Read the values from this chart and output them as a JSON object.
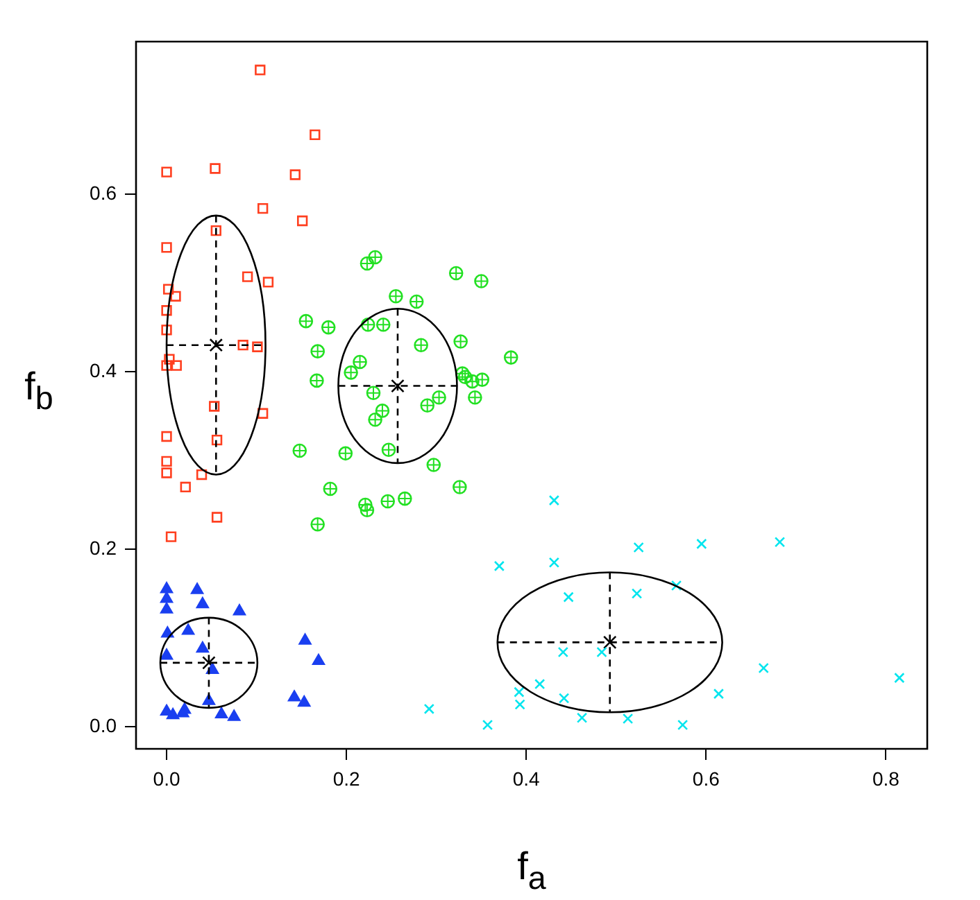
{
  "chart_data": {
    "type": "scatter",
    "xlabel": "f$_{a}$",
    "ylabel": "f$_{b}$",
    "xlim": [
      -0.034,
      0.846
    ],
    "ylim": [
      -0.025,
      0.772
    ],
    "xticks": [
      {
        "value": 0,
        "label": "0.0"
      },
      {
        "value": 0.2,
        "label": "0.2"
      },
      {
        "value": 0.4,
        "label": "0.4"
      },
      {
        "value": 0.6,
        "label": "0.6"
      },
      {
        "value": 0.8,
        "label": "0.8"
      }
    ],
    "yticks": [
      {
        "value": 0,
        "label": "0.0"
      },
      {
        "value": 0.2,
        "label": "0.2"
      },
      {
        "value": 0.4,
        "label": "0.4"
      },
      {
        "value": 0.6,
        "label": "0.6"
      }
    ],
    "grid": false,
    "legend": false,
    "series": [
      {
        "color": "#ff3f1f",
        "marker": "square",
        "x": [
          0.104,
          0.165,
          0.0,
          0.054,
          0.143,
          0.107,
          0.151,
          0.055,
          0.0,
          0.09,
          0.113,
          0.002,
          0.01,
          0.0,
          0.0,
          0.085,
          0.101,
          0.003,
          0.0,
          0.011,
          0.053,
          0.107,
          0.0,
          0.056,
          0.0,
          0.0,
          0.039,
          0.021,
          0.056,
          0.005
        ],
        "values": [
          0.74,
          0.667,
          0.625,
          0.629,
          0.622,
          0.584,
          0.57,
          0.559,
          0.54,
          0.507,
          0.501,
          0.493,
          0.485,
          0.469,
          0.447,
          0.43,
          0.428,
          0.414,
          0.407,
          0.407,
          0.361,
          0.353,
          0.327,
          0.323,
          0.299,
          0.286,
          0.284,
          0.27,
          0.236,
          0.214
        ]
      },
      {
        "color": "#22e022",
        "marker": "circle",
        "x": [
          0.232,
          0.223,
          0.322,
          0.35,
          0.255,
          0.278,
          0.155,
          0.18,
          0.224,
          0.241,
          0.327,
          0.283,
          0.168,
          0.383,
          0.215,
          0.205,
          0.329,
          0.332,
          0.34,
          0.351,
          0.167,
          0.23,
          0.303,
          0.343,
          0.29,
          0.24,
          0.232,
          0.148,
          0.199,
          0.247,
          0.297,
          0.326,
          0.182,
          0.221,
          0.223,
          0.246,
          0.265,
          0.168
        ],
        "values": [
          0.529,
          0.522,
          0.511,
          0.502,
          0.485,
          0.479,
          0.457,
          0.45,
          0.453,
          0.453,
          0.434,
          0.43,
          0.423,
          0.416,
          0.411,
          0.399,
          0.398,
          0.394,
          0.389,
          0.391,
          0.39,
          0.376,
          0.371,
          0.371,
          0.362,
          0.356,
          0.346,
          0.311,
          0.308,
          0.312,
          0.295,
          0.27,
          0.268,
          0.25,
          0.244,
          0.254,
          0.257,
          0.228
        ]
      },
      {
        "color": "#1a3ff0",
        "marker": "triangle",
        "x": [
          0.0,
          0.0,
          0.0,
          0.034,
          0.04,
          0.081,
          0.001,
          0.024,
          0.154,
          0.169,
          0.04,
          0.0,
          0.051,
          0.047,
          0.142,
          0.153,
          0.0,
          0.007,
          0.02,
          0.018,
          0.061,
          0.075
        ],
        "values": [
          0.155,
          0.144,
          0.132,
          0.154,
          0.138,
          0.13,
          0.105,
          0.108,
          0.097,
          0.074,
          0.088,
          0.08,
          0.064,
          0.029,
          0.033,
          0.027,
          0.017,
          0.013,
          0.019,
          0.015,
          0.014,
          0.011
        ]
      },
      {
        "color": "#00e5ee",
        "marker": "cross",
        "x": [
          0.431,
          0.525,
          0.595,
          0.682,
          0.37,
          0.431,
          0.447,
          0.523,
          0.567,
          0.441,
          0.484,
          0.664,
          0.815,
          0.415,
          0.392,
          0.393,
          0.442,
          0.614,
          0.292,
          0.462,
          0.513,
          0.357,
          0.574
        ],
        "values": [
          0.255,
          0.202,
          0.206,
          0.208,
          0.181,
          0.185,
          0.146,
          0.15,
          0.159,
          0.084,
          0.084,
          0.066,
          0.055,
          0.048,
          0.039,
          0.025,
          0.032,
          0.037,
          0.02,
          0.01,
          0.009,
          0.002,
          0.002
        ]
      },
      {
        "color": "#000000",
        "marker": "cross",
        "x": [
          0.055,
          0.257,
          0.047,
          0.493
        ],
        "values": [
          0.43,
          0.384,
          0.072,
          0.095
        ],
        "xerrors": [
          0.055,
          0.066,
          0.054,
          0.125
        ],
        "errors": [
          0.146,
          0.087,
          0.051,
          0.079
        ]
      }
    ]
  }
}
